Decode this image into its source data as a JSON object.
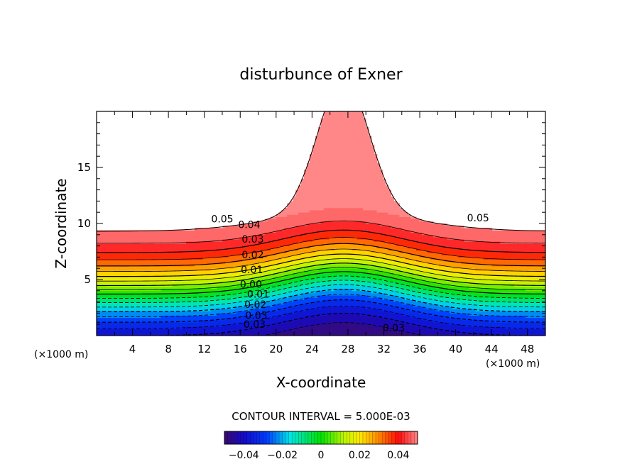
{
  "chart_data": {
    "type": "contour",
    "title": "disturbunce of Exner",
    "xlabel": "X-coordinate",
    "ylabel": "Z-coordinate",
    "x_unit_left": "(×1000 m)",
    "x_unit_right": "(×1000 m)",
    "xlim": [
      0,
      50
    ],
    "ylim": [
      0,
      20
    ],
    "x_ticks": [
      4,
      8,
      12,
      16,
      20,
      24,
      28,
      32,
      36,
      40,
      44,
      48
    ],
    "y_ticks": [
      5,
      10,
      15
    ],
    "contour_interval_text": "CONTOUR INTERVAL = 5.000E-03",
    "contour_interval": 0.005,
    "levels_labeled": [
      {
        "label": "0.05",
        "value": 0.05
      },
      {
        "label": "0.04",
        "value": 0.04
      },
      {
        "label": "0.03",
        "value": 0.03
      },
      {
        "label": "0.02",
        "value": 0.02
      },
      {
        "label": "0.01",
        "value": 0.01
      },
      {
        "label": "0.00",
        "value": 0.0
      },
      {
        "label": "-0.01",
        "value": -0.01
      },
      {
        "label": "-0.02",
        "value": -0.02
      },
      {
        "label": "-0.03",
        "value": -0.03
      }
    ],
    "contour_labels": [
      {
        "text": "0.05",
        "x": 14.0,
        "z": 10.4
      },
      {
        "text": "0.05",
        "x": 42.5,
        "z": 10.5
      },
      {
        "text": "0.04",
        "x": 17.0,
        "z": 9.9
      },
      {
        "text": "0.03",
        "x": 17.4,
        "z": 8.6
      },
      {
        "text": "0.02",
        "x": 17.4,
        "z": 7.2
      },
      {
        "text": "0.01",
        "x": 17.3,
        "z": 5.9
      },
      {
        "text": "0.00",
        "x": 17.2,
        "z": 4.6
      },
      {
        "text": "0.01",
        "x": 18.0,
        "z": 3.7
      },
      {
        "text": "0.02",
        "x": 17.7,
        "z": 2.8
      },
      {
        "text": "0.03",
        "x": 17.8,
        "z": 1.8
      },
      {
        "text": "0.03",
        "x": 17.6,
        "z": 1.0
      },
      {
        "text": "0.03",
        "x": 33.1,
        "z": 0.7
      }
    ],
    "colorbar": {
      "range": [
        -0.05,
        0.05
      ],
      "tick_labels": [
        "-0.04",
        "-0.02",
        "0",
        "0.02",
        "0.04"
      ],
      "tick_values": [
        -0.04,
        -0.02,
        0,
        0.02,
        0.04
      ]
    },
    "colors": {
      "low": "#3a0a6e",
      "mid": "#00e000",
      "high": "#ff7f7f"
    }
  }
}
